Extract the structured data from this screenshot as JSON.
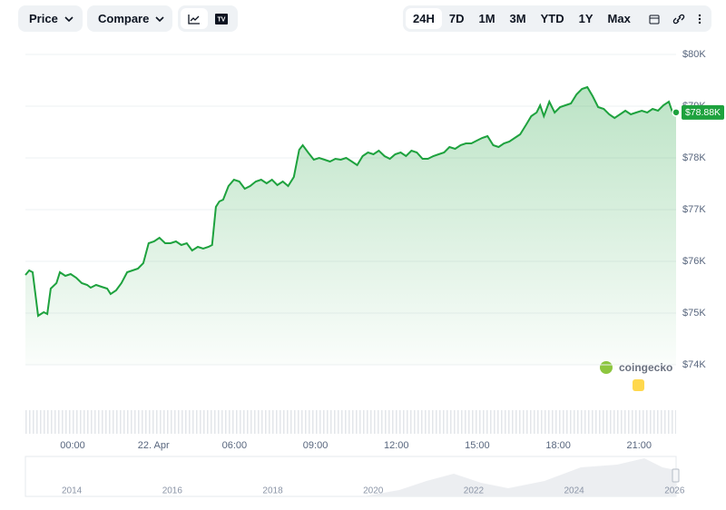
{
  "toolbar": {
    "price": "Price",
    "compare": "Compare",
    "ranges": [
      "24H",
      "7D",
      "1M",
      "3M",
      "YTD",
      "1Y",
      "Max"
    ],
    "active_range": "24H"
  },
  "chart_data": {
    "type": "line",
    "color": "#1ea23e",
    "grid": true,
    "x": [
      -1.75,
      -1.61,
      -1.48,
      -1.28,
      -1.07,
      -0.94,
      -0.81,
      -0.6,
      -0.47,
      -0.27,
      -0.07,
      0.13,
      0.34,
      0.54,
      0.67,
      0.87,
      1.07,
      1.28,
      1.41,
      1.61,
      1.81,
      2.02,
      2.22,
      2.42,
      2.62,
      2.82,
      3.02,
      3.22,
      3.43,
      3.63,
      3.83,
      4.03,
      4.23,
      4.43,
      4.64,
      4.84,
      5.04,
      5.17,
      5.31,
      5.44,
      5.58,
      5.78,
      5.98,
      6.18,
      6.38,
      6.58,
      6.79,
      6.99,
      7.19,
      7.39,
      7.59,
      7.79,
      7.99,
      8.2,
      8.4,
      8.53,
      8.73,
      8.94,
      9.14,
      9.34,
      9.54,
      9.74,
      9.94,
      10.14,
      10.35,
      10.55,
      10.75,
      10.95,
      11.15,
      11.35,
      11.56,
      11.76,
      11.96,
      12.16,
      12.36,
      12.56,
      12.76,
      12.97,
      13.17,
      13.37,
      13.57,
      13.77,
      13.97,
      14.18,
      14.38,
      14.58,
      14.78,
      14.98,
      15.18,
      15.38,
      15.59,
      15.79,
      15.99,
      16.19,
      16.39,
      16.59,
      16.8,
      17.0,
      17.2,
      17.33,
      17.47,
      17.67,
      17.87,
      18.07,
      18.27,
      18.47,
      18.68,
      18.88,
      19.08,
      19.28,
      19.48,
      19.69,
      19.89,
      20.09,
      20.29,
      20.49,
      20.69,
      20.89,
      21.1,
      21.3,
      21.5,
      21.7,
      21.9,
      22.1,
      22.24,
      22.37
    ],
    "values": [
      75737,
      75825,
      75790,
      74947,
      75018,
      74982,
      75474,
      75579,
      75790,
      75719,
      75754,
      75684,
      75579,
      75544,
      75491,
      75544,
      75509,
      75474,
      75368,
      75439,
      75579,
      75790,
      75825,
      75860,
      75965,
      76351,
      76386,
      76456,
      76351,
      76351,
      76386,
      76316,
      76351,
      76210,
      76281,
      76246,
      76281,
      76316,
      77053,
      77158,
      77193,
      77456,
      77579,
      77544,
      77404,
      77456,
      77544,
      77579,
      77509,
      77579,
      77474,
      77544,
      77456,
      77632,
      78158,
      78246,
      78105,
      77965,
      78000,
      77965,
      77930,
      77982,
      77965,
      78000,
      77930,
      77860,
      78035,
      78105,
      78070,
      78140,
      78035,
      77982,
      78070,
      78105,
      78035,
      78140,
      78105,
      77982,
      77982,
      78035,
      78070,
      78105,
      78211,
      78175,
      78246,
      78281,
      78281,
      78333,
      78386,
      78421,
      78246,
      78211,
      78281,
      78316,
      78386,
      78456,
      78632,
      78807,
      78877,
      79018,
      78807,
      79088,
      78877,
      78982,
      79018,
      79053,
      79228,
      79333,
      79368,
      79193,
      78982,
      78947,
      78842,
      78772,
      78842,
      78912,
      78842,
      78877,
      78912,
      78877,
      78947,
      78912,
      79018,
      79088,
      78877,
      78880
    ],
    "xlim": [
      -1.75,
      22.37
    ],
    "xticks": [
      {
        "value": 0,
        "label": "00:00"
      },
      {
        "value": 3,
        "label": "22. Apr"
      },
      {
        "value": 6,
        "label": "06:00"
      },
      {
        "value": 9,
        "label": "09:00"
      },
      {
        "value": 12,
        "label": "12:00"
      },
      {
        "value": 15,
        "label": "15:00"
      },
      {
        "value": 18,
        "label": "18:00"
      },
      {
        "value": 21,
        "label": "21:00"
      }
    ],
    "ylim": [
      74000,
      80000
    ],
    "yticks": [
      {
        "value": 74000,
        "label": "$74K"
      },
      {
        "value": 75000,
        "label": "$75K"
      },
      {
        "value": 76000,
        "label": "$76K"
      },
      {
        "value": 77000,
        "label": "$77K"
      },
      {
        "value": 78000,
        "label": "$78K"
      },
      {
        "value": 79000,
        "label": "$79K"
      },
      {
        "value": 80000,
        "label": "$80K"
      }
    ],
    "current_price": {
      "value": 78880,
      "label": "$78.88K"
    }
  },
  "watermark": "coingecko",
  "navigator": {
    "labels": [
      "2014",
      "2016",
      "2018",
      "2020",
      "2022",
      "2024",
      "2026"
    ]
  }
}
